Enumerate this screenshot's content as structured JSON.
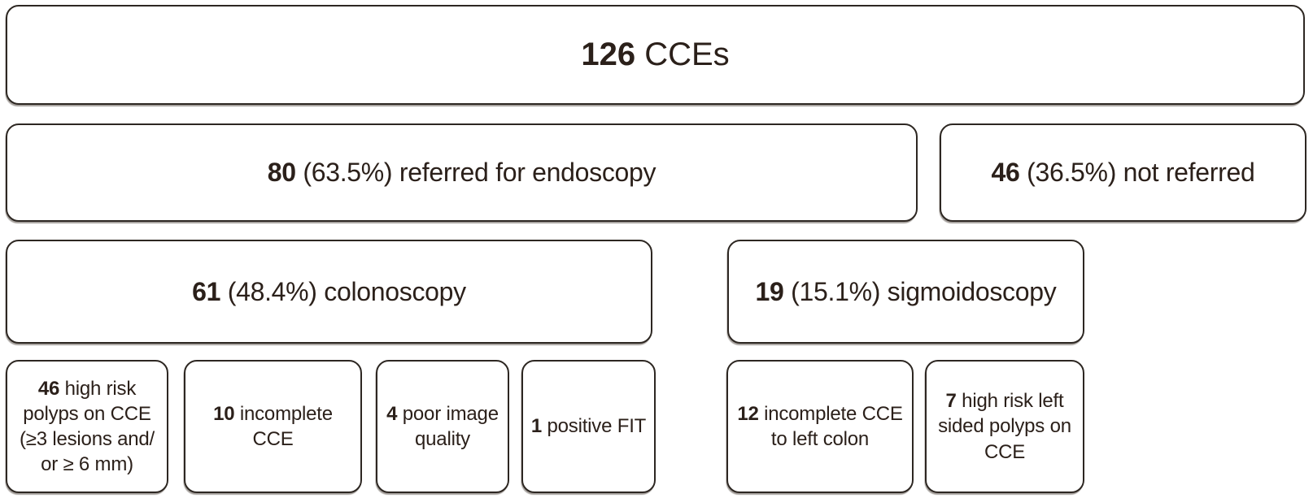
{
  "diagram": {
    "description": "CCE referral outcomes flowchart",
    "colors": {
      "background": "#ffffff",
      "border": "#2d2722",
      "text": "#2b201a"
    },
    "nodes": {
      "total": {
        "count": "126",
        "label": "CCEs"
      },
      "referred": {
        "count": "80",
        "label": "(63.5%) referred for endoscopy"
      },
      "not_referred": {
        "count": "46",
        "label": "(36.5%) not referred"
      },
      "colonoscopy": {
        "count": "61",
        "label": "(48.4%) colonoscopy"
      },
      "sigmoidoscopy": {
        "count": "19",
        "label": "(15.1%) sigmoidoscopy"
      },
      "high_risk_polyps": {
        "count": "46",
        "label": "high risk polyps on CCE (≥3 lesions and/ or ≥ 6 mm)"
      },
      "incomplete_cce": {
        "count": "10",
        "label": "incomplete CCE"
      },
      "poor_image_quality": {
        "count": "4",
        "label": "poor image quality"
      },
      "positive_fit": {
        "count": "1",
        "label": "positive FIT"
      },
      "incomplete_cce_left_colon": {
        "count": "12",
        "label": "incomplete CCE to left colon"
      },
      "high_risk_left_sided_polyps": {
        "count": "7",
        "label": "high risk left sided polyps on CCE"
      }
    }
  }
}
